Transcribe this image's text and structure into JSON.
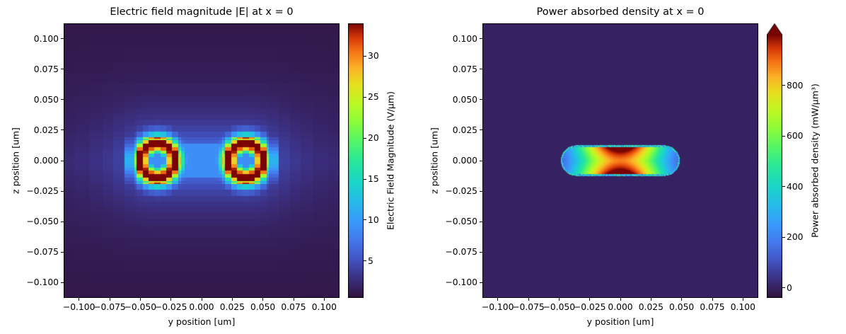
{
  "figure": {
    "background": "#ffffff"
  },
  "chart_data": [
    {
      "type": "heatmap",
      "title": "Electric field magnitude |E| at x = 0",
      "xlabel": "y position [um]",
      "ylabel": "z position [um]",
      "xlim": [
        -0.1125,
        0.1125
      ],
      "ylim": [
        -0.1125,
        0.1125
      ],
      "xtick_values": [
        -0.1,
        -0.075,
        -0.05,
        -0.025,
        0,
        0.025,
        0.05,
        0.075,
        0.1
      ],
      "xtick_labels": [
        "−0.100",
        "−0.075",
        "−0.050",
        "−0.025",
        "0.000",
        "0.025",
        "0.050",
        "0.075",
        "0.100"
      ],
      "ytick_values": [
        0.1,
        0.075,
        0.05,
        0.025,
        0,
        -0.025,
        -0.05,
        -0.075,
        -0.1
      ],
      "ytick_labels": [
        "0.100",
        "0.075",
        "0.050",
        "0.025",
        "0.000",
        "−0.025",
        "−0.050",
        "−0.075",
        "−0.100"
      ],
      "colormap": "turbo",
      "grid": false,
      "colorbar": {
        "label": "Electric Field Magnitude (V/μm)",
        "tick_values": [
          5,
          10,
          15,
          20,
          25,
          30
        ],
        "tick_labels": [
          "5",
          "10",
          "15",
          "20",
          "25",
          "30"
        ],
        "vmin": 0.5,
        "vmax": 34,
        "extend_max": false
      },
      "field_model": {
        "kind": "efield",
        "rod_half_length": 0.036,
        "rod_radius": 0.013,
        "interior_value": 9,
        "tip_peak_value": 34,
        "tip_hotspot_width": 0.007,
        "tip_halo_amp": 8,
        "tip_halo_width": 0.02,
        "background_base": 0.8,
        "surface_glow_amp": 4.5,
        "surface_glow_decay": 0.02,
        "z_band_amp": 1.4,
        "z_band_decay": 0.06,
        "mesh": "nonuniform"
      }
    },
    {
      "type": "heatmap",
      "title": "Power absorbed density at x = 0",
      "xlabel": "y position [um]",
      "ylabel": "z position [um]",
      "xlim": [
        -0.1125,
        0.1125
      ],
      "ylim": [
        -0.1125,
        0.1125
      ],
      "xtick_values": [
        -0.1,
        -0.075,
        -0.05,
        -0.025,
        0,
        0.025,
        0.05,
        0.075,
        0.1
      ],
      "xtick_labels": [
        "−0.100",
        "−0.075",
        "−0.050",
        "−0.025",
        "0.000",
        "0.025",
        "0.050",
        "0.075",
        "0.100"
      ],
      "ytick_values": [
        0.1,
        0.075,
        0.05,
        0.025,
        0,
        -0.025,
        -0.05,
        -0.075,
        -0.1
      ],
      "ytick_labels": [
        "0.100",
        "0.075",
        "0.050",
        "0.025",
        "0.000",
        "−0.025",
        "−0.050",
        "−0.075",
        "−0.100"
      ],
      "colormap": "turbo",
      "grid": false,
      "colorbar": {
        "label": "Power absorbed density (mW/μm³)",
        "tick_values": [
          0,
          200,
          400,
          600,
          800
        ],
        "tick_labels": [
          "0",
          "200",
          "400",
          "600",
          "800"
        ],
        "vmin": -40,
        "vmax": 1000,
        "extend_max": true
      },
      "field_model": {
        "kind": "power",
        "rod_half_length": 0.036,
        "rod_radius": 0.0125,
        "background_value": 0,
        "center_peak": 980,
        "end_value": 120,
        "axial_compress": 1.35,
        "edge_base": 0.9,
        "edge_brighten": 0.25,
        "rim_noise": true
      }
    }
  ]
}
